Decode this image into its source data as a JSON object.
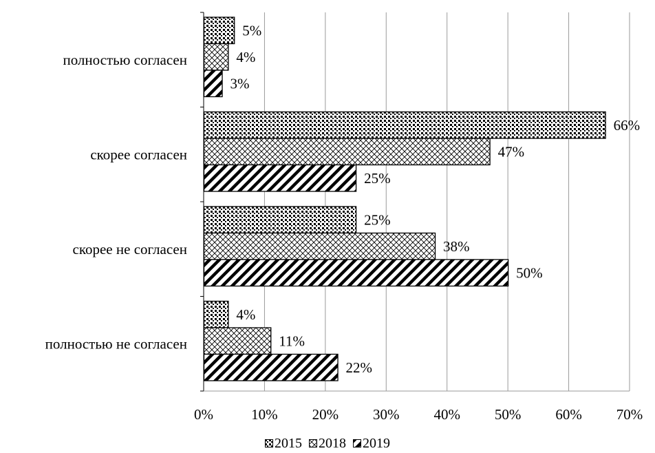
{
  "chart_data": {
    "type": "bar",
    "orientation": "horizontal",
    "categories": [
      "полностью согласен",
      "скорее согласен",
      "скорее не согласен",
      "полностью не согласен"
    ],
    "series": [
      {
        "name": "2015",
        "values": [
          5,
          66,
          25,
          4
        ],
        "labels": [
          "5%",
          "66%",
          "25%",
          "4%"
        ],
        "pattern": "dots"
      },
      {
        "name": "2018",
        "values": [
          4,
          47,
          38,
          11
        ],
        "labels": [
          "4%",
          "47%",
          "38%",
          "11%"
        ],
        "pattern": "crosshatch"
      },
      {
        "name": "2019",
        "values": [
          3,
          25,
          50,
          22
        ],
        "labels": [
          "3%",
          "25%",
          "50%",
          "22%"
        ],
        "pattern": "diagonal"
      }
    ],
    "xlim": [
      0,
      70
    ],
    "xticks": [
      0,
      10,
      20,
      30,
      40,
      50,
      60,
      70
    ],
    "xtick_labels": [
      "0%",
      "10%",
      "20%",
      "30%",
      "40%",
      "50%",
      "60%",
      "70%"
    ],
    "grid": "vertical",
    "legend_position": "bottom"
  }
}
